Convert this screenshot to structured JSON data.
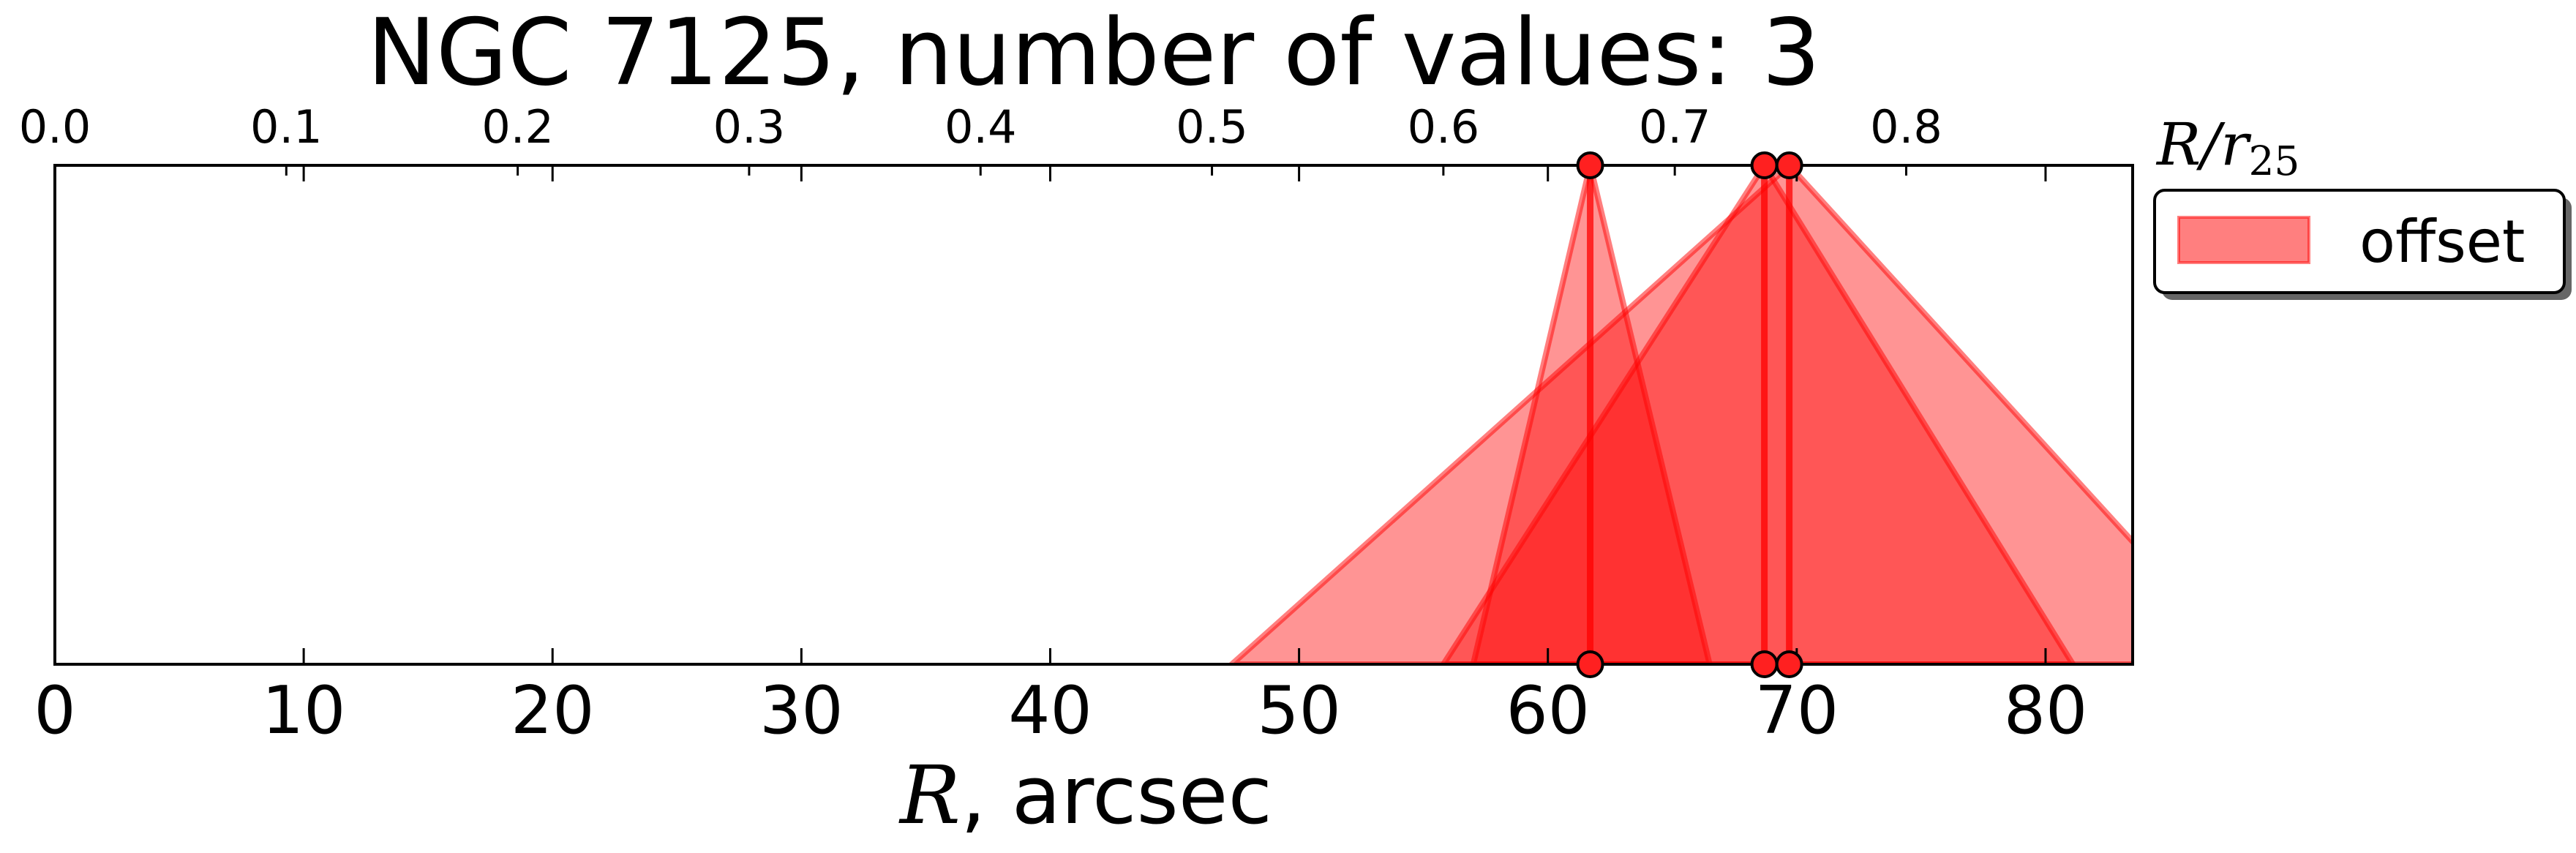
{
  "chart_data": {
    "type": "area",
    "title": "NGC 7125, number of values: 3",
    "xlabel": "R, arcsec",
    "xlabel_parts": {
      "italic": "R",
      "rest": ", arcsec"
    },
    "xlim": [
      0,
      83.5
    ],
    "xticks": [
      0,
      10,
      20,
      30,
      40,
      50,
      60,
      70,
      80
    ],
    "xtick_labels": [
      "0",
      "10",
      "20",
      "30",
      "40",
      "50",
      "60",
      "70",
      "80"
    ],
    "top_axis": {
      "label": "R/r25",
      "label_parts": {
        "base": "R/r",
        "sub": "25"
      },
      "scale_arcsec_per_unit": 93.0,
      "ticks": [
        0.0,
        0.1,
        0.2,
        0.3,
        0.4,
        0.5,
        0.6,
        0.7,
        0.8
      ],
      "tick_labels": [
        "0.0",
        "0.1",
        "0.2",
        "0.3",
        "0.4",
        "0.5",
        "0.6",
        "0.7",
        "0.8"
      ]
    },
    "ylim": [
      0,
      1
    ],
    "grid": false,
    "legend": {
      "placement": "outside-right",
      "entries": [
        "offset"
      ]
    },
    "series": [
      {
        "name": "offset",
        "center": 61.7,
        "left": 57.0,
        "right": 66.5
      },
      {
        "name": "offset",
        "center": 68.7,
        "left": 55.8,
        "right": 81.1
      },
      {
        "name": "offset",
        "center": 69.7,
        "left": 47.3,
        "right": 88.0
      }
    ],
    "colors": {
      "fill": "#ff0000",
      "edge": "#ff0000",
      "marker_edge": "#000000"
    }
  }
}
